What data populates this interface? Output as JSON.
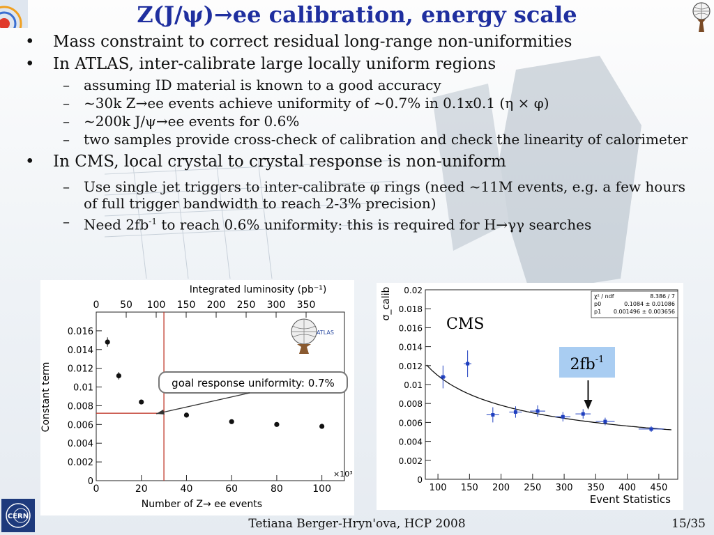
{
  "slide": {
    "title": "Z(J/ψ)→ee calibration, energy scale",
    "footer": "Tetiana Berger-Hryn'ova, HCP 2008",
    "page": "15/35",
    "cern_logo_text": "CERN"
  },
  "bullets": {
    "b1": "Mass constraint to correct residual long-range non-uniformities",
    "b2": "In ATLAS, inter-calibrate large locally uniform regions",
    "b2_1": "assuming ID material is known to a good accuracy",
    "b2_2": "~30k Z→ee events achieve uniformity of ~0.7% in 0.1x0.1 (η × φ)",
    "b2_3": "~200k J/ψ→ee events for 0.6%",
    "b2_4": "two samples provide cross-check of calibration and check the linearity of calorimeter",
    "b3": "In CMS, local crystal to crystal response is non-uniform",
    "b3_1": "Use single jet triggers to inter-calibrate φ rings (need ~11M events, e.g. a few hours of full trigger bandwidth to reach 2-3% precision)",
    "b3_2_pre": "Need 2fb",
    "b3_2_sup": "-1",
    "b3_2_post": " to reach 0.6% uniformity: this is required for H→γγ searches"
  },
  "chart_data": [
    {
      "type": "scatter",
      "title": "",
      "xlabel": "Number of Z→ ee events",
      "x_multiplier_label": "×10³",
      "ylabel": "Constant term",
      "top_axis_label": "Integrated luminosity (pb⁻¹)",
      "xlim": [
        0,
        110
      ],
      "ylim": [
        0,
        0.018
      ],
      "x_ticks": [
        0,
        20,
        40,
        60,
        80,
        100
      ],
      "y_ticks": [
        0,
        0.002,
        0.004,
        0.006,
        0.008,
        0.01,
        0.012,
        0.014,
        0.016
      ],
      "y_tick_labels": [
        "0",
        "0.002",
        "0.004",
        "0.006",
        "0.008",
        "0.01",
        "0.012",
        "0.014",
        "0.016"
      ],
      "top_ticks": [
        "0",
        "50",
        "100",
        "150",
        "200",
        "250",
        "300",
        "350"
      ],
      "points": [
        {
          "x": 5,
          "y": 0.0148,
          "err": 0.0005
        },
        {
          "x": 10,
          "y": 0.0112,
          "err": 0.0004
        },
        {
          "x": 20,
          "y": 0.0084,
          "err": 0.0002
        },
        {
          "x": 40,
          "y": 0.007,
          "err": 0.0001
        },
        {
          "x": 60,
          "y": 0.0063,
          "err": 0.0001
        },
        {
          "x": 80,
          "y": 0.006,
          "err": 0.0001
        },
        {
          "x": 100,
          "y": 0.0058,
          "err": 0.0001
        }
      ],
      "goal_line": {
        "x": 30,
        "y": 0.0072
      },
      "annotation": "goal response uniformity: 0.7%",
      "logo_text": "ATLAS"
    },
    {
      "type": "scatter",
      "title": "",
      "xlabel": "Event Statistics",
      "ylabel": "σ_calib",
      "xlim": [
        80,
        480
      ],
      "ylim": [
        0,
        0.02
      ],
      "x_ticks": [
        100,
        150,
        200,
        250,
        300,
        350,
        400,
        450
      ],
      "y_ticks": [
        0,
        0.002,
        0.004,
        0.006,
        0.008,
        0.01,
        0.012,
        0.014,
        0.016,
        0.018,
        0.02
      ],
      "y_tick_labels": [
        "0",
        "0.002",
        "0.004",
        "0.006",
        "0.008",
        "0.01",
        "0.012",
        "0.014",
        "0.016",
        "0.018",
        "0.02"
      ],
      "points": [
        {
          "x": 108,
          "y": 0.0108,
          "err": 0.0012,
          "xerr": 5
        },
        {
          "x": 147,
          "y": 0.0122,
          "err": 0.0014,
          "xerr": 6
        },
        {
          "x": 187,
          "y": 0.0068,
          "err": 0.0008,
          "xerr": 10
        },
        {
          "x": 223,
          "y": 0.0071,
          "err": 0.0006,
          "xerr": 10
        },
        {
          "x": 258,
          "y": 0.0072,
          "err": 0.0006,
          "xerr": 12
        },
        {
          "x": 298,
          "y": 0.0066,
          "err": 0.0005,
          "xerr": 12
        },
        {
          "x": 330,
          "y": 0.0069,
          "err": 0.0005,
          "xerr": 12
        },
        {
          "x": 365,
          "y": 0.0061,
          "err": 0.0004,
          "xerr": 15
        },
        {
          "x": 438,
          "y": 0.0053,
          "err": 0.0003,
          "xerr": 20
        }
      ],
      "fit": {
        "p0": 0.1084,
        "p1": 0.001496
      },
      "stats_box": [
        {
          "name": "χ² / ndf",
          "value": "8.386 / 7"
        },
        {
          "name": "p0",
          "value": "0.1084 ± 0.01086"
        },
        {
          "name": "p1",
          "value": "0.001496 ± 0.003656"
        }
      ],
      "label": "CMS",
      "marker_label_base": "2fb",
      "marker_label_sup": "-1",
      "marker_x": 338,
      "colors": {
        "points": "#1f3fbf",
        "fit": "#111111",
        "label_box": "#a9cdf2"
      }
    }
  ]
}
